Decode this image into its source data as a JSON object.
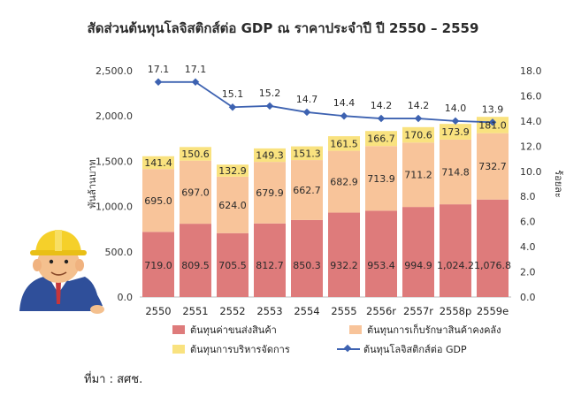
{
  "title": "สัดส่วนต้นทุนโลจิสติกส์ต่อ GDP ณ ราคาประจำปี ปี 2550 – 2559",
  "source": "ที่มา : สศช.",
  "chart_data": {
    "type": "bar",
    "stacked": true,
    "categories": [
      "2550",
      "2551",
      "2552",
      "2553",
      "2554",
      "2555",
      "2556r",
      "2557r",
      "2558p",
      "2559e"
    ],
    "ylabel": "พันล้านบาท",
    "ylim": [
      0,
      2500
    ],
    "yticks": [
      "0.0",
      "500.0",
      "1,000.0",
      "1,500.0",
      "2,000.0",
      "2,500.0"
    ],
    "y2label": "ร้อยละ",
    "y2lim": [
      0,
      18
    ],
    "y2ticks": [
      "0.0",
      "2.0",
      "4.0",
      "6.0",
      "8.0",
      "10.0",
      "12.0",
      "14.0",
      "16.0",
      "18.0"
    ],
    "legend_position": "bottom",
    "grid": false,
    "series": [
      {
        "name": "ต้นทุนค่าขนส่งสินค้า",
        "color": "#de7b7b",
        "values": [
          719.0,
          809.5,
          705.5,
          812.7,
          850.3,
          932.2,
          953.4,
          994.9,
          1024.2,
          1076.8
        ],
        "labels": [
          "719.0",
          "809.5",
          "705.5",
          "812.7",
          "850.3",
          "932.2",
          "953.4",
          "994.9",
          "1,024.2",
          "1,076.8"
        ]
      },
      {
        "name": "ต้นทุนการเก็บรักษาสินค้าคงคลัง",
        "color": "#f8c49a",
        "values": [
          695.0,
          697.0,
          624.0,
          679.9,
          662.7,
          682.9,
          713.9,
          711.2,
          714.8,
          732.7
        ],
        "labels": [
          "695.0",
          "697.0",
          "624.0",
          "679.9",
          "662.7",
          "682.9",
          "713.9",
          "711.2",
          "714.8",
          "732.7"
        ]
      },
      {
        "name": "ต้นทุนการบริหารจัดการ",
        "color": "#f9e27f",
        "values": [
          141.4,
          150.6,
          132.9,
          149.3,
          151.3,
          161.5,
          166.7,
          170.6,
          173.9,
          181.0
        ],
        "labels": [
          "141.4",
          "150.6",
          "132.9",
          "149.3",
          "151.3",
          "161.5",
          "166.7",
          "170.6",
          "173.9",
          "181.0"
        ]
      },
      {
        "name": "ต้นทุนโลจิสติกส์ต่อ GDP",
        "type": "line",
        "axis": "right",
        "color": "#3d62b1",
        "values": [
          17.1,
          17.1,
          15.1,
          15.2,
          14.7,
          14.4,
          14.2,
          14.2,
          14.0,
          13.9
        ],
        "labels": [
          "17.1",
          "17.1",
          "15.1",
          "15.2",
          "14.7",
          "14.4",
          "14.2",
          "14.2",
          "14.0",
          "13.9"
        ]
      }
    ]
  }
}
